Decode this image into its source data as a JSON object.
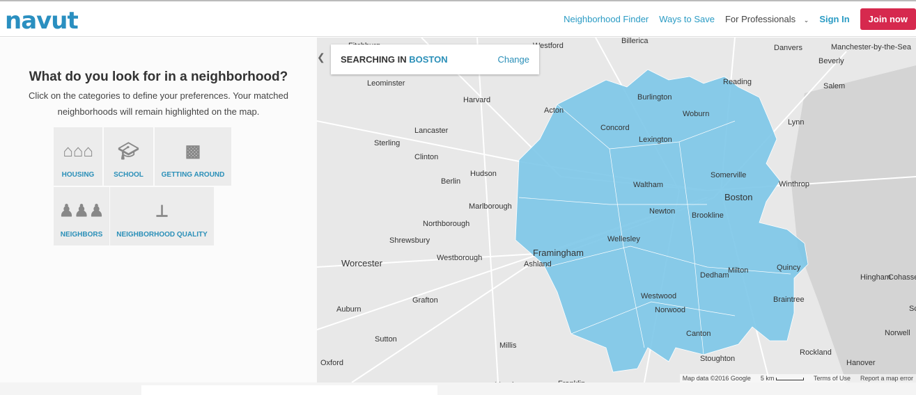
{
  "header": {
    "logo": "navut",
    "nav": [
      "Neighborhood Finder",
      "Ways to Save",
      "For Professionals",
      "Sign In",
      "Join now"
    ]
  },
  "sidebar": {
    "title": "What do you look for in a neighborhood?",
    "subtitle": "Click on the categories to define your preferences. Your matched neighborhoods will remain highlighted on the map.",
    "categories": [
      {
        "label": "HOUSING",
        "icon": "houses-icon"
      },
      {
        "label": "SCHOOL",
        "icon": "graduation-cap-icon"
      },
      {
        "label": "GETTING AROUND",
        "icon": "car-icon"
      },
      {
        "label": "NEIGHBORS",
        "icon": "people-icon"
      },
      {
        "label": "NEIGHBORHOOD QUALITY",
        "icon": "signpost-icon"
      }
    ]
  },
  "map": {
    "search_prefix": "SEARCHING IN",
    "city": "BOSTON",
    "change": "Change",
    "towns": [
      "Fitchburg",
      "Westford",
      "Billerica",
      "Danvers",
      "Manchester-by-the-Sea",
      "Beverly",
      "Leominster",
      "Reading",
      "Salem",
      "Harvard",
      "Burlington",
      "Acton",
      "Woburn",
      "Lynn",
      "Concord",
      "Lancaster",
      "Lexington",
      "Sterling",
      "Clinton",
      "Somerville",
      "Hudson",
      "Berlin",
      "Waltham",
      "Boston",
      "Winthrop",
      "Marlborough",
      "Newton",
      "Brookline",
      "Northborough",
      "Shrewsbury",
      "Wellesley",
      "Framingham",
      "Westborough",
      "Ashland",
      "Worcester",
      "Milton",
      "Quincy",
      "Hingham",
      "Cohasset",
      "Dedham",
      "Westwood",
      "Grafton",
      "Norwood",
      "Braintree",
      "Scituate",
      "Auburn",
      "Canton",
      "Norwell",
      "Sutton",
      "Millis",
      "Rockland",
      "Oxford",
      "Mendon",
      "Stoughton",
      "Hanover",
      "Franklin"
    ],
    "attribution": [
      "Map data ©2016 Google",
      "5 km",
      "Terms of Use",
      "Report a map error"
    ]
  },
  "colors": {
    "accent": "#2a8fb8",
    "join": "#d6294e",
    "region": "#7cc6e8"
  }
}
